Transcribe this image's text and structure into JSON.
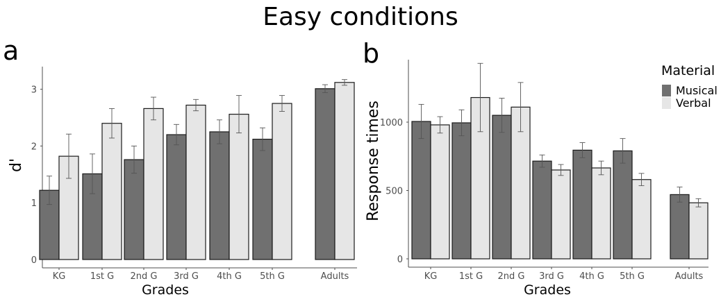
{
  "figure": {
    "title": "Easy conditions",
    "colors": {
      "Musical": "#707070",
      "Verbal": "#e6e6e6",
      "border": "#1a1a1a",
      "axis": "#4d4d4d"
    }
  },
  "chart_data": [
    {
      "type": "bar",
      "panel_label": "a",
      "xlabel": "Grades",
      "ylabel": "d'",
      "ylim": [
        0,
        3.3
      ],
      "yticks": [
        0,
        1,
        2,
        3
      ],
      "grid": false,
      "categories": [
        "KG",
        "1st G",
        "2nd G",
        "3rd G",
        "4th G",
        "5th G",
        "Adults"
      ],
      "series": [
        {
          "name": "Musical",
          "values": [
            1.22,
            1.51,
            1.76,
            2.2,
            2.25,
            2.12,
            3.01
          ],
          "errors": [
            0.25,
            0.35,
            0.24,
            0.18,
            0.21,
            0.2,
            0.07
          ]
        },
        {
          "name": "Verbal",
          "values": [
            1.82,
            2.4,
            2.66,
            2.72,
            2.56,
            2.75,
            3.12
          ],
          "errors": [
            0.39,
            0.26,
            0.2,
            0.1,
            0.33,
            0.14,
            0.05
          ]
        }
      ]
    },
    {
      "type": "bar",
      "panel_label": "b",
      "xlabel": "Grades",
      "ylabel": "Response times",
      "ylim": [
        0,
        1450
      ],
      "yticks": [
        0,
        500,
        1000
      ],
      "grid": false,
      "legend": {
        "title": "Material",
        "position": "top-right"
      },
      "categories": [
        "KG",
        "1st G",
        "2nd G",
        "3rd G",
        "4th G",
        "5th G",
        "Adults"
      ],
      "series": [
        {
          "name": "Musical",
          "values": [
            1005,
            995,
            1050,
            715,
            795,
            790,
            470
          ],
          "errors": [
            125,
            95,
            125,
            45,
            55,
            90,
            55
          ]
        },
        {
          "name": "Verbal",
          "values": [
            980,
            1180,
            1110,
            650,
            665,
            580,
            410
          ],
          "errors": [
            60,
            250,
            180,
            40,
            50,
            45,
            30
          ]
        }
      ]
    }
  ]
}
